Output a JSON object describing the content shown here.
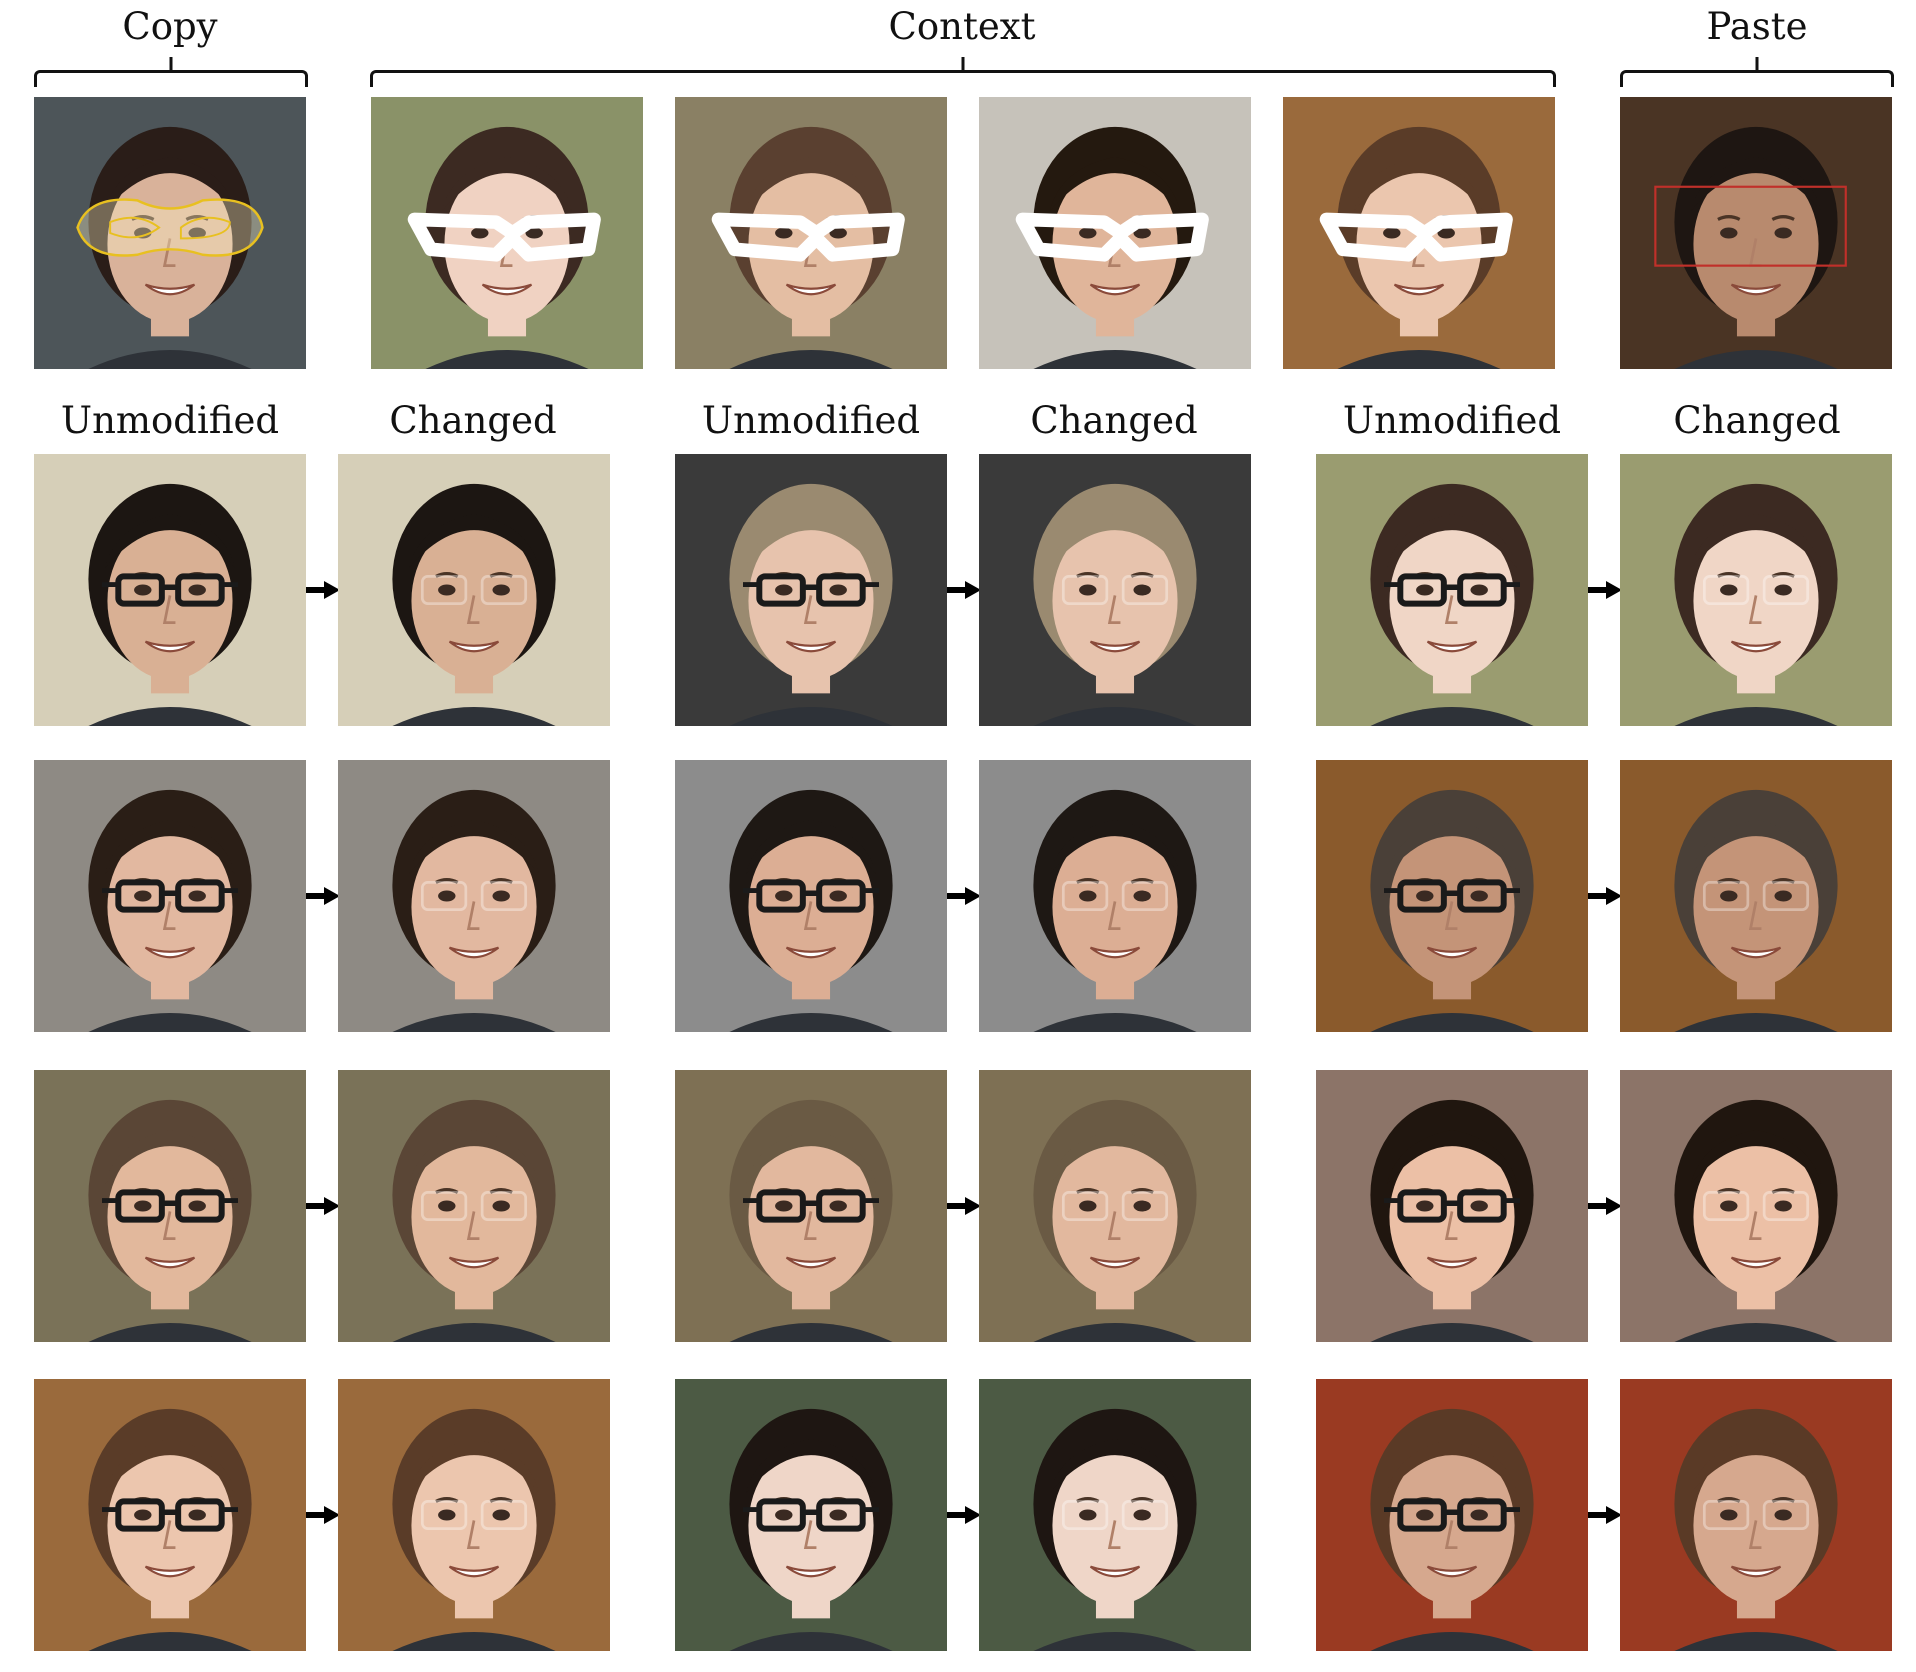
{
  "header": {
    "copy_label": "Copy",
    "context_label": "Context",
    "paste_label": "Paste"
  },
  "column_labels": [
    "Unmodified",
    "Changed",
    "Unmodified",
    "Changed",
    "Unmodified",
    "Changed"
  ],
  "top_row": [
    {
      "role": "copy",
      "skin": "#d9b29a",
      "hair": "#2a1d18",
      "bg": "#4d5559",
      "overlay": "yellow-outline"
    },
    {
      "role": "context",
      "skin": "#f0d2c2",
      "hair": "#3c2a22",
      "bg": "#8a9268",
      "overlay": "white-glasses"
    },
    {
      "role": "context",
      "skin": "#e4bea3",
      "hair": "#5a4030",
      "bg": "#8a8064",
      "overlay": "white-glasses"
    },
    {
      "role": "context",
      "skin": "#e0b59a",
      "hair": "#24190f",
      "bg": "#c6c2ba",
      "overlay": "white-glasses"
    },
    {
      "role": "context",
      "skin": "#ebc6ae",
      "hair": "#5a3c28",
      "bg": "#9a6a3c",
      "overlay": "white-glasses"
    },
    {
      "role": "paste",
      "skin": "#b88a6e",
      "hair": "#1e1612",
      "bg": "#4a3424",
      "overlay": "red-box"
    }
  ],
  "pairs": [
    [
      {
        "skin": "#d9b094",
        "hair": "#1c1612",
        "bg": "#d6cfb8"
      },
      {
        "skin": "#e7c3ad",
        "hair": "#9a8a70",
        "bg": "#3a3a3a"
      },
      {
        "skin": "#f0d6c6",
        "hair": "#3c2a22",
        "bg": "#9a9c70"
      }
    ],
    [
      {
        "skin": "#e2b8a0",
        "hair": "#2a1e16",
        "bg": "#8e8a84"
      },
      {
        "skin": "#dcae94",
        "hair": "#1e1814",
        "bg": "#8c8c8c"
      },
      {
        "skin": "#c49478",
        "hair": "#4a4038",
        "bg": "#8a5a2c"
      }
    ],
    [
      {
        "skin": "#e2b89c",
        "hair": "#5a4636",
        "bg": "#7a7258"
      },
      {
        "skin": "#e2b89e",
        "hair": "#6a5a44",
        "bg": "#7e7054"
      },
      {
        "skin": "#ecc0a6",
        "hair": "#20160f",
        "bg": "#8c7468"
      }
    ],
    [
      {
        "skin": "#ecc6ae",
        "hair": "#5a3c28",
        "bg": "#9a6a3c"
      },
      {
        "skin": "#efd6c8",
        "hair": "#1e1612",
        "bg": "#4c5a44"
      },
      {
        "skin": "#d6a88e",
        "hair": "#5a3a26",
        "bg": "#9a3a22"
      }
    ]
  ]
}
